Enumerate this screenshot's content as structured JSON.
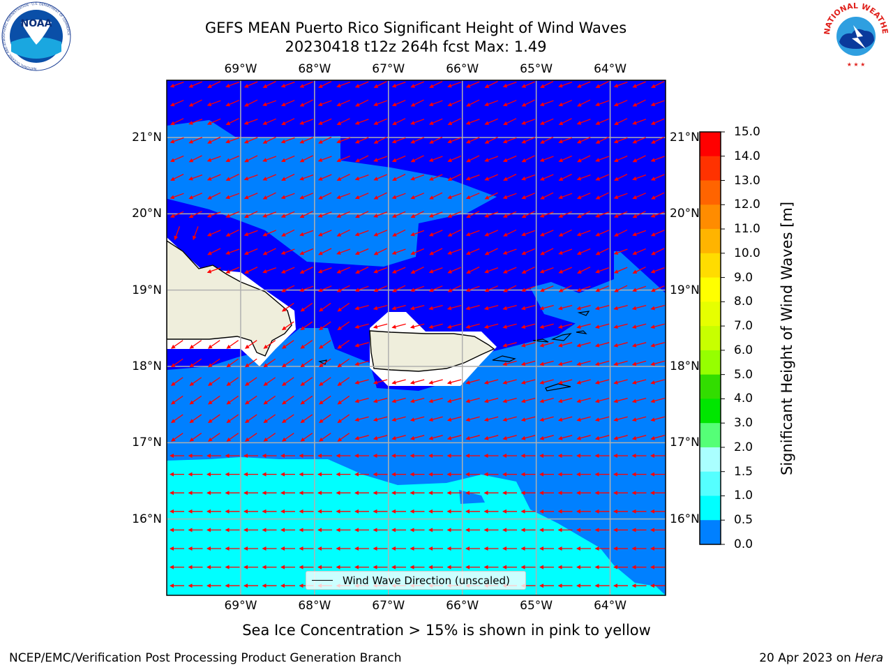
{
  "header": {
    "title_line1": "GEFS MEAN Puerto Rico Significant Height of Wind Waves",
    "title_line2": "20230418 t12z 264h fcst   Max: 1.49"
  },
  "logos": {
    "noaa": {
      "text": "NOAA",
      "ring_text": "NATIONAL OCEANIC AND ATMOSPHERIC ADMINISTRATION · U.S. DEPARTMENT OF COMMERCE"
    },
    "nws": {
      "ring_text": "NATIONAL WEATHER SERVICE"
    }
  },
  "map": {
    "lon_labels": [
      "69°W",
      "68°W",
      "67°W",
      "66°W",
      "65°W",
      "64°W"
    ],
    "lat_labels": [
      "21°N",
      "20°N",
      "19°N",
      "18°N",
      "17°N",
      "16°N"
    ],
    "extent": {
      "lon": [
        -70.0,
        -63.25
      ],
      "lat": [
        15.0,
        21.75
      ]
    },
    "colors": {
      "water_low": "#0000ff",
      "water_mid": "#0080ff",
      "water_high": "#00ffff",
      "land": "#efeedc",
      "arrow": "#ff0000",
      "grid": "#b0b0b0"
    },
    "legend": "Wind Wave Direction (unscaled)"
  },
  "colorbar": {
    "label": "Significant Height of Wind Waves [m]",
    "ticks": [
      "15.0",
      "14.0",
      "13.0",
      "12.0",
      "11.0",
      "10.0",
      "9.0",
      "8.0",
      "7.0",
      "6.0",
      "5.0",
      "4.0",
      "3.0",
      "2.0",
      "1.5",
      "1.0",
      "0.5",
      "0.0"
    ],
    "colors": [
      "#ff0000",
      "#ff3200",
      "#ff6400",
      "#ff8c00",
      "#ffb400",
      "#ffdc00",
      "#ffff00",
      "#e6ff00",
      "#c8ff00",
      "#96ff00",
      "#32dd00",
      "#00e600",
      "#55ff77",
      "#aaffff",
      "#55ffff",
      "#00ffff",
      "#0080ff",
      "#0000ff"
    ]
  },
  "footer": {
    "subtitle": "Sea Ice Concentration > 15% is shown in pink to yellow",
    "left": "NCEP/EMC/Verification Post Processing Product Generation Branch",
    "right_prefix": "20 Apr 2023 on ",
    "right_host": "Hera"
  }
}
